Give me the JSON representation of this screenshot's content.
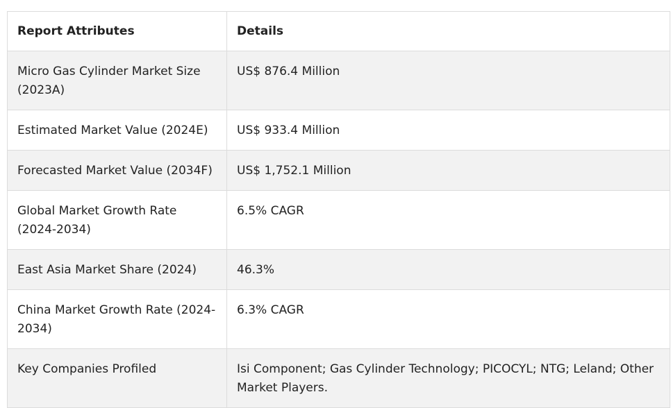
{
  "table": {
    "headers": [
      "Report Attributes",
      "Details"
    ],
    "rows": [
      {
        "attribute": "Micro Gas Cylinder Market Size (2023A)",
        "detail": "US$ 876.4 Million"
      },
      {
        "attribute": "Estimated Market Value (2024E)",
        "detail": "US$ 933.4 Million"
      },
      {
        "attribute": "Forecasted Market Value (2034F)",
        "detail": "US$ 1,752.1 Million"
      },
      {
        "attribute": "Global Market Growth Rate (2024-2034)",
        "detail": "6.5% CAGR"
      },
      {
        "attribute": "East Asia Market Share (2024)",
        "detail": "46.3%"
      },
      {
        "attribute": "China Market Growth Rate (2024-2034)",
        "detail": "6.3% CAGR"
      },
      {
        "attribute": "Key Companies Profiled",
        "detail": "Isi Component; Gas Cylinder Technology; PICOCYL; NTG; Leland; Other Market Players."
      }
    ]
  },
  "colors": {
    "border": "#dcdcdc",
    "shaded_row": "#f2f2f2",
    "text": "#222222"
  }
}
